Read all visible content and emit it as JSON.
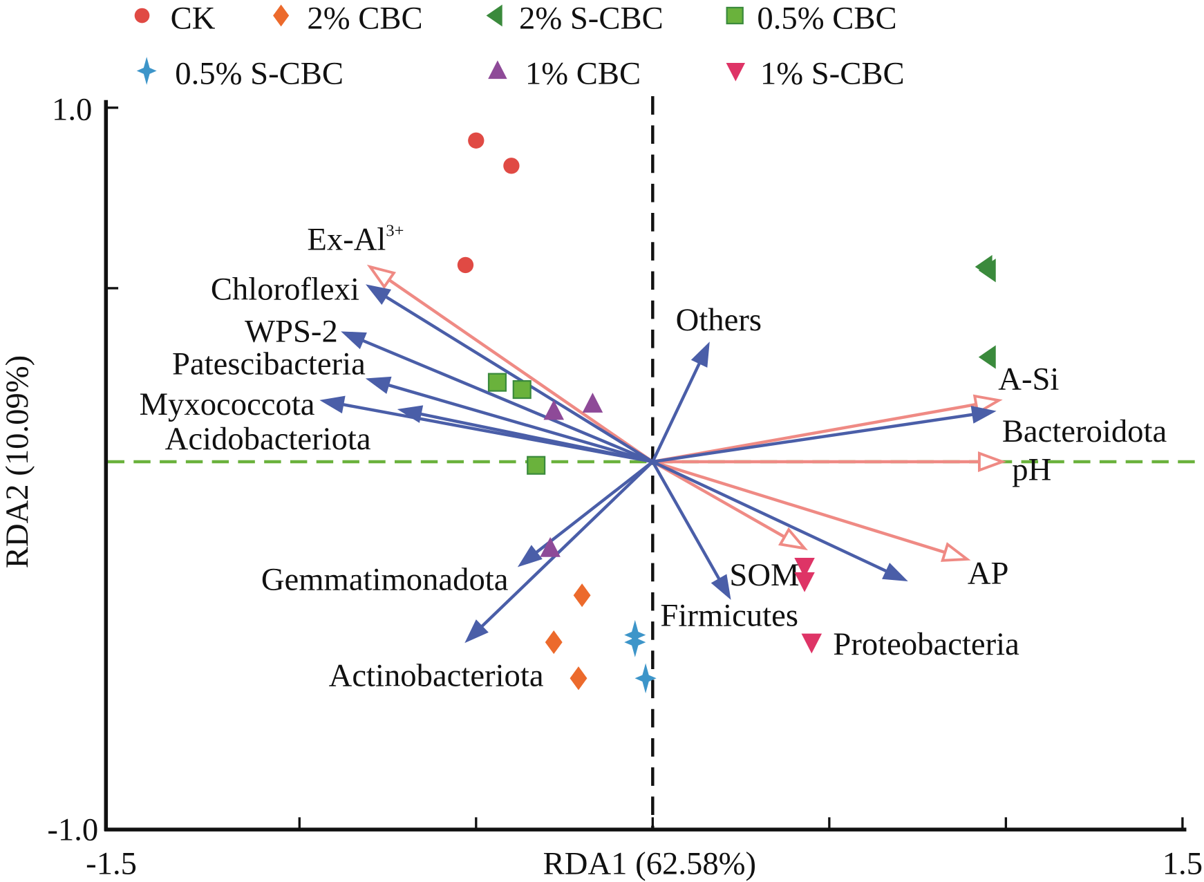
{
  "chart_data": {
    "type": "scatter",
    "subtype": "RDA biplot",
    "xlabel": "RDA1 (62.58%)",
    "ylabel": "RDA2 (10.09%)",
    "xlim": [
      -1.5,
      1.5
    ],
    "ylim": [
      -1.0,
      1.0
    ],
    "x_tick_labels": [
      "-1.5",
      "1.5"
    ],
    "y_tick_labels": [
      "1.0",
      "-1.0"
    ],
    "grid": false,
    "legend_position": "top",
    "series": [
      {
        "name": "CK",
        "marker": "circle",
        "color": "#e04a44",
        "points": [
          [
            -0.5,
            0.89
          ],
          [
            -0.4,
            0.82
          ],
          [
            -0.53,
            0.545
          ]
        ]
      },
      {
        "name": "2% CBC",
        "marker": "diamond",
        "color": "#ec6a2c",
        "points": [
          [
            -0.2,
            -0.37
          ],
          [
            -0.28,
            -0.5
          ],
          [
            -0.21,
            -0.6
          ]
        ]
      },
      {
        "name": "2% S-CBC",
        "marker": "triangle-left",
        "color": "#3a8a3c",
        "points": [
          [
            0.94,
            0.54
          ],
          [
            0.95,
            0.53
          ],
          [
            0.95,
            0.29
          ]
        ]
      },
      {
        "name": "0.5% CBC",
        "marker": "square",
        "color": "#6ab23c",
        "points": [
          [
            -0.44,
            0.22
          ],
          [
            -0.37,
            0.2
          ],
          [
            -0.33,
            -0.01
          ]
        ]
      },
      {
        "name": "0.5% S-CBC",
        "marker": "star4",
        "color": "#3d95c9",
        "points": [
          [
            -0.05,
            -0.48
          ],
          [
            -0.05,
            -0.5
          ],
          [
            -0.02,
            -0.6
          ]
        ]
      },
      {
        "name": "1% CBC",
        "marker": "triangle-up",
        "color": "#8e4a98",
        "points": [
          [
            -0.28,
            0.14
          ],
          [
            -0.17,
            0.16
          ],
          [
            -0.29,
            -0.24
          ]
        ]
      },
      {
        "name": "1% S-CBC",
        "marker": "triangle-down",
        "color": "#de3466",
        "points": [
          [
            0.43,
            -0.29
          ],
          [
            0.43,
            -0.33
          ],
          [
            0.45,
            -0.5
          ]
        ]
      }
    ],
    "species_arrows": {
      "color": "#4a5ea8",
      "items": [
        {
          "label": "Chloroflexi",
          "x": -0.81,
          "y": 0.49
        },
        {
          "label": "WPS-2",
          "x": -0.88,
          "y": 0.36
        },
        {
          "label": "Patescibacteria",
          "x": -0.81,
          "y": 0.23
        },
        {
          "label": "Myxococcota",
          "x": -0.94,
          "y": 0.17
        },
        {
          "label": "Acidobacteriota",
          "x": -0.72,
          "y": 0.145
        },
        {
          "label": "Others",
          "x": 0.16,
          "y": 0.33
        },
        {
          "label": "Bacteroidota",
          "x": 0.97,
          "y": 0.14
        },
        {
          "label": "Firmicutes",
          "x": 0.22,
          "y": -0.38
        },
        {
          "label": "Proteobacteria",
          "x": 0.72,
          "y": -0.33
        },
        {
          "label": "Gemmatimonadota",
          "x": -0.38,
          "y": -0.29
        },
        {
          "label": "Actinobacteriota",
          "x": -0.53,
          "y": -0.5
        }
      ]
    },
    "environment_arrows": {
      "color": "#ef8a84",
      "items": [
        {
          "label": "Ex-Al",
          "superscript": "3+",
          "x": -0.8,
          "y": 0.54
        },
        {
          "label": "A-Si",
          "x": 0.98,
          "y": 0.17
        },
        {
          "label": "pH",
          "x": 0.99,
          "y": 0.0
        },
        {
          "label": "AP",
          "x": 0.89,
          "y": -0.27
        },
        {
          "label": "SOM",
          "x": 0.43,
          "y": -0.24
        }
      ]
    },
    "reference_lines": {
      "vertical_color": "#111111",
      "horizontal_color": "#6ab23c"
    }
  }
}
